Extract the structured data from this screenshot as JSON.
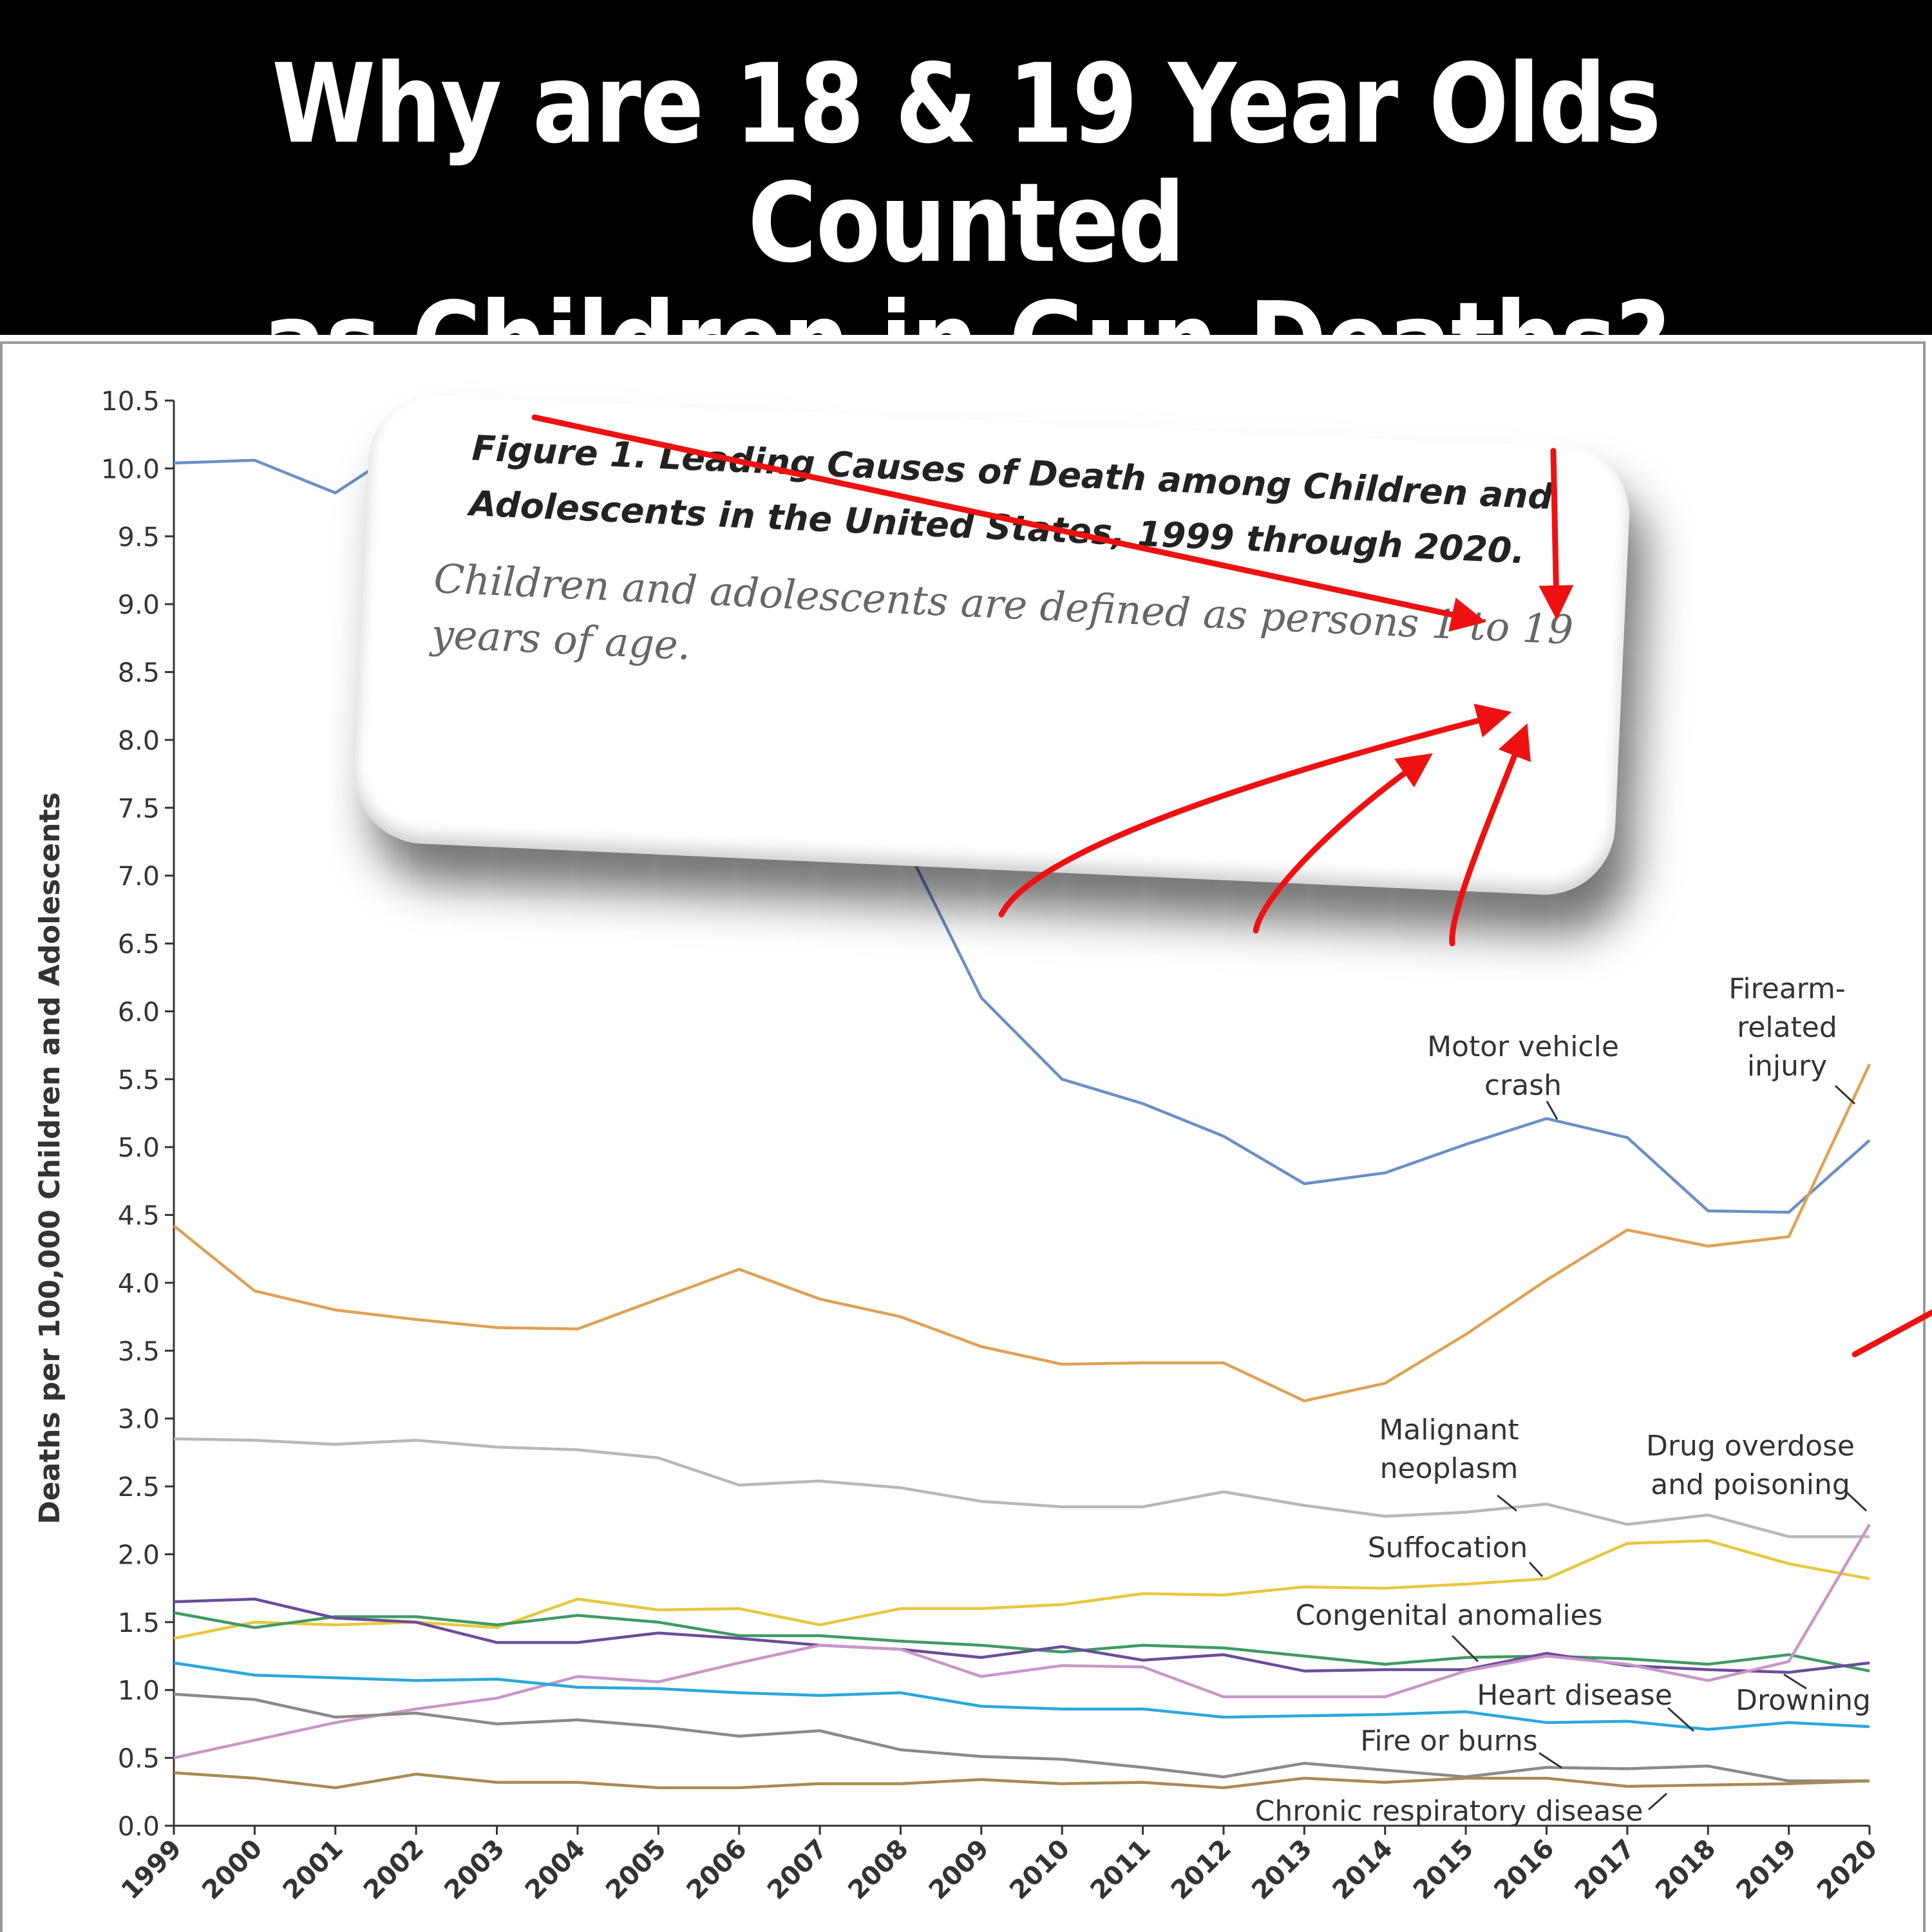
{
  "banner": {
    "title_line1": "Why are 18 & 19 Year Olds Counted",
    "title_line2": "as Children in Gun Deaths?"
  },
  "caption": {
    "title": "Figure 1. Leading Causes of Death among Children and Adolescents in the United States, 1999 through 2020.",
    "body": "Children and adolescents are defined as persons 1 to 19 years of age."
  },
  "colors": {
    "arrow": "#ee1111",
    "axis": "#333333"
  },
  "chart_data": {
    "type": "line",
    "ylabel": "Deaths per 100,000 Children and Adolescents",
    "xlabel": "",
    "ylim": [
      0,
      10.5
    ],
    "ytick_step": 0.5,
    "x": [
      1999,
      2000,
      2001,
      2002,
      2003,
      2004,
      2005,
      2006,
      2007,
      2008,
      2009,
      2010,
      2011,
      2012,
      2013,
      2014,
      2015,
      2016,
      2017,
      2018,
      2019,
      2020
    ],
    "grid": false,
    "series": [
      {
        "name": "Motor vehicle crash",
        "color": "#6a8fc6",
        "values": [
          10.04,
          10.06,
          9.82,
          10.21,
          9.88,
          9.75,
          9.55,
          9.2,
          8.6,
          7.3,
          6.1,
          5.5,
          5.32,
          5.08,
          4.73,
          4.81,
          5.02,
          5.21,
          5.07,
          4.53,
          4.52,
          5.05
        ]
      },
      {
        "name": "Firearm-related injury",
        "color": "#e0a155",
        "values": [
          4.42,
          3.94,
          3.8,
          3.73,
          3.67,
          3.66,
          3.88,
          4.1,
          3.88,
          3.75,
          3.53,
          3.4,
          3.41,
          3.41,
          3.13,
          3.26,
          3.62,
          4.02,
          4.39,
          4.27,
          4.34,
          5.61
        ]
      },
      {
        "name": "Malignant neoplasm",
        "color": "#b8b8b8",
        "values": [
          2.85,
          2.84,
          2.81,
          2.84,
          2.79,
          2.77,
          2.71,
          2.51,
          2.54,
          2.49,
          2.39,
          2.35,
          2.35,
          2.46,
          2.36,
          2.28,
          2.31,
          2.37,
          2.22,
          2.29,
          2.13,
          2.13
        ]
      },
      {
        "name": "Suffocation",
        "color": "#e8c740",
        "values": [
          1.38,
          1.5,
          1.48,
          1.5,
          1.46,
          1.67,
          1.59,
          1.6,
          1.48,
          1.6,
          1.6,
          1.63,
          1.71,
          1.7,
          1.76,
          1.75,
          1.78,
          1.82,
          2.08,
          2.1,
          1.93,
          1.82
        ]
      },
      {
        "name": "Congenital anomalies",
        "color": "#3f9b62",
        "values": [
          1.57,
          1.46,
          1.54,
          1.54,
          1.48,
          1.55,
          1.5,
          1.4,
          1.4,
          1.36,
          1.33,
          1.28,
          1.33,
          1.31,
          1.25,
          1.19,
          1.24,
          1.25,
          1.23,
          1.19,
          1.26,
          1.14
        ]
      },
      {
        "name": "Drowning",
        "color": "#6b4c9a",
        "values": [
          1.65,
          1.67,
          1.53,
          1.5,
          1.35,
          1.35,
          1.42,
          1.38,
          1.33,
          1.3,
          1.24,
          1.32,
          1.22,
          1.26,
          1.14,
          1.15,
          1.15,
          1.27,
          1.18,
          1.15,
          1.13,
          1.2
        ]
      },
      {
        "name": "Drug overdose and poisoning",
        "color": "#c996c8",
        "values": [
          0.5,
          0.63,
          0.76,
          0.86,
          0.94,
          1.1,
          1.06,
          1.2,
          1.33,
          1.3,
          1.1,
          1.18,
          1.17,
          0.95,
          0.95,
          0.95,
          1.14,
          1.25,
          1.19,
          1.07,
          1.21,
          2.22
        ]
      },
      {
        "name": "Heart disease",
        "color": "#2aa8dc",
        "values": [
          1.2,
          1.11,
          1.09,
          1.07,
          1.08,
          1.02,
          1.01,
          0.98,
          0.96,
          0.98,
          0.88,
          0.86,
          0.86,
          0.8,
          0.81,
          0.82,
          0.84,
          0.76,
          0.77,
          0.71,
          0.76,
          0.73
        ]
      },
      {
        "name": "Fire or burns",
        "color": "#8a8a8a",
        "values": [
          0.97,
          0.93,
          0.8,
          0.83,
          0.75,
          0.78,
          0.73,
          0.66,
          0.7,
          0.56,
          0.51,
          0.49,
          0.43,
          0.36,
          0.46,
          0.41,
          0.36,
          0.43,
          0.42,
          0.44,
          0.33,
          0.33
        ]
      },
      {
        "name": "Chronic respiratory disease",
        "color": "#a88a52",
        "values": [
          0.39,
          0.35,
          0.28,
          0.38,
          0.32,
          0.32,
          0.28,
          0.28,
          0.31,
          0.31,
          0.34,
          0.31,
          0.32,
          0.28,
          0.35,
          0.32,
          0.35,
          0.35,
          0.29,
          0.3,
          0.31,
          0.33
        ]
      }
    ],
    "annotations": [
      {
        "lines": [
          "Motor vehicle",
          "crash"
        ],
        "x": 2016,
        "y": 5.21
      },
      {
        "lines": [
          "Firearm-",
          "related",
          "injury"
        ],
        "x": 2020,
        "y": 5.61
      },
      {
        "lines": [
          "Malignant",
          "neoplasm"
        ],
        "x": 2015.6,
        "y": 2.34
      },
      {
        "lines": [
          "Drug overdose",
          "and poisoning"
        ],
        "x": 2020,
        "y": 2.22
      },
      {
        "lines": [
          "Suffocation"
        ],
        "x": 2016,
        "y": 1.82
      },
      {
        "lines": [
          "Congenital anomalies"
        ],
        "x": 2015,
        "y": 1.24
      },
      {
        "lines": [
          "Heart disease"
        ],
        "x": 2017.8,
        "y": 0.72
      },
      {
        "lines": [
          "Drowning"
        ],
        "x": 2019,
        "y": 1.13
      },
      {
        "lines": [
          "Fire or burns"
        ],
        "x": 2016.1,
        "y": 0.42
      },
      {
        "lines": [
          "Chronic respiratory disease"
        ],
        "x": 2017.4,
        "y": 0.3
      }
    ]
  }
}
